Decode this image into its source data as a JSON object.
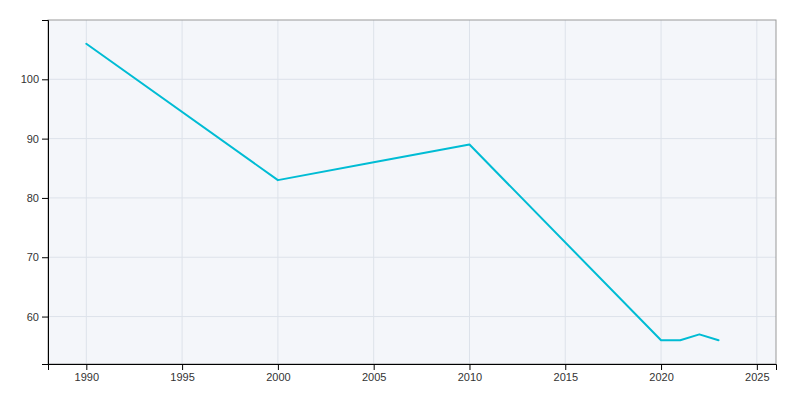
{
  "chart_data": {
    "type": "line",
    "x": [
      1990,
      2000,
      2005,
      2010,
      2020,
      2021,
      2022,
      2023
    ],
    "values": [
      106,
      83,
      86,
      89,
      56,
      56,
      57,
      56
    ],
    "color": "#00bcd4",
    "xlim": [
      1988,
      2026
    ],
    "ylim": [
      52,
      110
    ],
    "xticks": [
      1990,
      1995,
      2000,
      2005,
      2010,
      2015,
      2020,
      2025
    ],
    "yticks": [
      60,
      70,
      80,
      90,
      100
    ],
    "grid": true
  }
}
